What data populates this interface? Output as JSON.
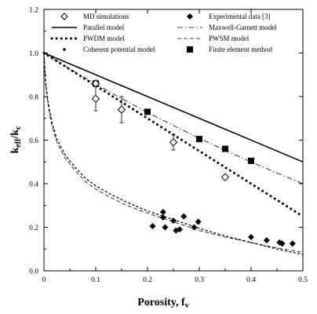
{
  "chart_data": {
    "type": "scatter",
    "title": "",
    "xlabel": "Porosity, f",
    "xlabel_sub": "v",
    "ylabel": "k",
    "ylabel_sub": "eff",
    "ylabel_mid": "/k",
    "ylabel_sub2": "c",
    "xlim": [
      0,
      0.5
    ],
    "ylim": [
      0,
      1.2
    ],
    "xticks": [
      "0",
      "0.1",
      "0.2",
      "0.3",
      "0.4",
      "0.5"
    ],
    "yticks": [
      "0.0",
      "0.2",
      "0.4",
      "0.6",
      "0.8",
      "1.0",
      "1.2"
    ],
    "grid": false,
    "legend_position": "top",
    "legend": [
      {
        "name": "MD simulations",
        "marker": "open-diamond"
      },
      {
        "name": "Experimental data [3]",
        "marker": "filled-diamond"
      },
      {
        "name": "Parallel model",
        "line": "solid"
      },
      {
        "name": "Maxwell-Garnett model",
        "line": "dash-dot"
      },
      {
        "name": "PWDM model",
        "line": "dotted-thick"
      },
      {
        "name": "PWSM model",
        "line": "dashed"
      },
      {
        "name": "Coherent potential model",
        "marker": "small-dot"
      },
      {
        "name": "Finite element method",
        "marker": "filled-square"
      }
    ],
    "series": [
      {
        "name": "MD simulations",
        "kind": "points",
        "x": [
          0.1,
          0.1,
          0.15,
          0.25,
          0.35
        ],
        "y": [
          0.86,
          0.79,
          0.74,
          0.59,
          0.43
        ],
        "err": [
          0,
          0.055,
          0.06,
          0.035,
          0.01
        ]
      },
      {
        "name": "Experimental data [3]",
        "kind": "points",
        "x": [
          0.21,
          0.23,
          0.23,
          0.234,
          0.25,
          0.255,
          0.262,
          0.27,
          0.29,
          0.298,
          0.4,
          0.43,
          0.455,
          0.46,
          0.48
        ],
        "y": [
          0.205,
          0.27,
          0.245,
          0.2,
          0.23,
          0.185,
          0.19,
          0.25,
          0.2,
          0.225,
          0.155,
          0.14,
          0.13,
          0.125,
          0.125
        ]
      },
      {
        "name": "Parallel model",
        "kind": "line",
        "x": [
          0,
          0.5
        ],
        "y": [
          1.0,
          0.5
        ]
      },
      {
        "name": "Maxwell-Garnett model",
        "kind": "line",
        "x": [
          0,
          0.05,
          0.1,
          0.15,
          0.2,
          0.25,
          0.3,
          0.35,
          0.4,
          0.45,
          0.5
        ],
        "y": [
          1.0,
          0.927,
          0.857,
          0.791,
          0.727,
          0.667,
          0.609,
          0.553,
          0.5,
          0.449,
          0.4
        ]
      },
      {
        "name": "PWDM model",
        "kind": "line",
        "x": [
          0,
          0.05,
          0.1,
          0.15,
          0.2,
          0.25,
          0.3,
          0.35,
          0.4,
          0.45,
          0.5
        ],
        "y": [
          1.0,
          0.925,
          0.85,
          0.775,
          0.7,
          0.625,
          0.55,
          0.475,
          0.4,
          0.325,
          0.25
        ]
      },
      {
        "name": "PWSM model",
        "kind": "line",
        "x": [
          0,
          0.003,
          0.008,
          0.015,
          0.025,
          0.04,
          0.06,
          0.08,
          0.1,
          0.13,
          0.16,
          0.2,
          0.25,
          0.3,
          0.35,
          0.4,
          0.45,
          0.5
        ],
        "y": [
          1.0,
          0.86,
          0.76,
          0.67,
          0.59,
          0.52,
          0.46,
          0.41,
          0.375,
          0.335,
          0.3,
          0.265,
          0.225,
          0.185,
          0.155,
          0.13,
          0.105,
          0.085
        ]
      },
      {
        "name": "Coherent potential model",
        "kind": "line",
        "x": [
          0,
          0.003,
          0.008,
          0.015,
          0.025,
          0.04,
          0.06,
          0.08,
          0.1,
          0.13,
          0.16,
          0.2,
          0.25,
          0.3,
          0.35,
          0.4,
          0.45,
          0.5
        ],
        "y": [
          1.0,
          0.87,
          0.775,
          0.685,
          0.605,
          0.535,
          0.475,
          0.425,
          0.39,
          0.35,
          0.315,
          0.275,
          0.235,
          0.195,
          0.16,
          0.13,
          0.1,
          0.075
        ]
      },
      {
        "name": "Finite element method",
        "kind": "points",
        "x": [
          0.1,
          0.2,
          0.3,
          0.35,
          0.4
        ],
        "y": [
          0.86,
          0.73,
          0.605,
          0.56,
          0.505
        ]
      }
    ]
  }
}
